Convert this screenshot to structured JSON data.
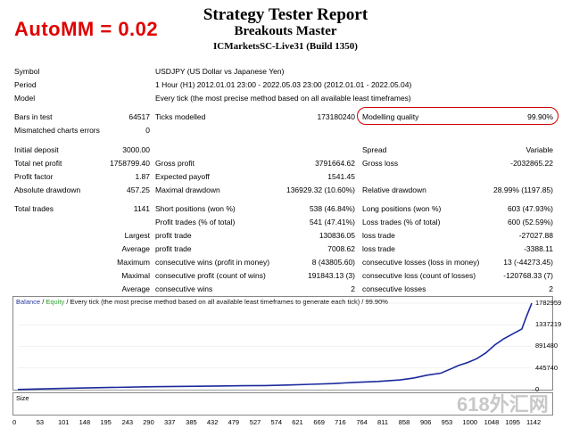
{
  "automm": "AutoMM = 0.02",
  "header": {
    "title": "Strategy Tester Report",
    "ea_name": "Breakouts Master",
    "server": "ICMarketsSC-Live31 (Build 1350)"
  },
  "info": {
    "symbol_label": "Symbol",
    "symbol_value": "USDJPY (US Dollar vs Japanese Yen)",
    "period_label": "Period",
    "period_value": "1 Hour (H1) 2012.01.01 23:00 - 2022.05.03 23:00 (2012.01.01 - 2022.05.04)",
    "model_label": "Model",
    "model_value": "Every tick (the most precise method based on all available least timeframes)"
  },
  "stats": {
    "bars_label": "Bars in test",
    "bars_value": "64517",
    "ticks_label": "Ticks modelled",
    "ticks_value": "173180240",
    "mq_label": "Modelling quality",
    "mq_value": "99.90%",
    "mismatch_label": "Mismatched charts errors",
    "mismatch_value": "0",
    "deposit_label": "Initial deposit",
    "deposit_value": "3000.00",
    "spread_label": "Spread",
    "spread_value": "Variable",
    "netprofit_label": "Total net profit",
    "netprofit_value": "1758799.40",
    "grossprofit_label": "Gross profit",
    "grossprofit_value": "3791664.62",
    "grossloss_label": "Gross loss",
    "grossloss_value": "-2032865.22",
    "pf_label": "Profit factor",
    "pf_value": "1.87",
    "ep_label": "Expected payoff",
    "ep_value": "1541.45",
    "absdd_label": "Absolute drawdown",
    "absdd_value": "457.25",
    "maxdd_label": "Maximal drawdown",
    "maxdd_value": "136929.32 (10.60%)",
    "reldd_label": "Relative drawdown",
    "reldd_value": "28.99% (1197.85)",
    "trades_label": "Total trades",
    "trades_value": "1141",
    "short_label": "Short positions (won %)",
    "short_value": "538 (46.84%)",
    "long_label": "Long positions (won %)",
    "long_value": "603 (47.93%)",
    "pt_label": "Profit trades (% of total)",
    "pt_value": "541 (47.41%)",
    "lt_label": "Loss trades (% of total)",
    "lt_value": "600 (52.59%)",
    "largest_label": "Largest",
    "largest_profit_label": "profit trade",
    "largest_profit_value": "130836.05",
    "largest_loss_label": "loss trade",
    "largest_loss_value": "-27027.88",
    "average_label": "Average",
    "average_profit_label": "profit trade",
    "average_profit_value": "7008.62",
    "average_loss_label": "loss trade",
    "average_loss_value": "-3388.11",
    "maximum_label": "Maximum",
    "max_cw_label": "consecutive wins (profit in money)",
    "max_cw_value": "8 (43805.60)",
    "max_cl_label": "consecutive losses (loss in money)",
    "max_cl_value": "13 (-44273.45)",
    "maximal_label": "Maximal",
    "maximal_cp_label": "consecutive profit (count of wins)",
    "maximal_cp_value": "191843.13 (3)",
    "maximal_cl_label": "consecutive loss (count of losses)",
    "maximal_cl_value": "-120768.33 (7)",
    "avg2_label": "Average",
    "avg_cw_label": "consecutive wins",
    "avg_cw_value": "2",
    "avg_cl_label": "consecutive losses",
    "avg_cl_value": "2"
  },
  "chart": {
    "balance_label": "Balance",
    "sep": " / ",
    "equity_label": "Equity",
    "rest": " / Every tick (the most precise method based on all available least timeframes to generate each tick) / 99.90%",
    "size_label": "Size",
    "y_ticks": [
      "1782959",
      "1337219",
      "891480",
      "445740",
      "0"
    ],
    "x_ticks": [
      "0",
      "53",
      "101",
      "148",
      "195",
      "243",
      "290",
      "337",
      "385",
      "432",
      "479",
      "527",
      "574",
      "621",
      "669",
      "716",
      "764",
      "811",
      "858",
      "906",
      "953",
      "1000",
      "1048",
      "1095",
      "1142"
    ],
    "balance_color": "#1a2a9c",
    "size_color": "#1f9a1f"
  },
  "watermark": "618外汇网",
  "chart_data": {
    "type": "line",
    "title": "",
    "xlabel": "",
    "ylabel": "",
    "ylim": [
      0,
      1782959
    ],
    "xlim": [
      0,
      1142
    ],
    "series": [
      {
        "name": "Balance",
        "x": [
          0,
          100,
          200,
          300,
          400,
          500,
          550,
          600,
          650,
          700,
          750,
          800,
          850,
          880,
          910,
          940,
          960,
          980,
          1000,
          1020,
          1040,
          1060,
          1080,
          1100,
          1120,
          1130,
          1142
        ],
        "values": [
          3000,
          25000,
          45000,
          60000,
          70000,
          80000,
          85000,
          95000,
          110000,
          125000,
          150000,
          170000,
          200000,
          240000,
          300000,
          340000,
          420000,
          500000,
          560000,
          640000,
          760000,
          920000,
          1050000,
          1150000,
          1250000,
          1500000,
          1782959
        ]
      }
    ]
  }
}
